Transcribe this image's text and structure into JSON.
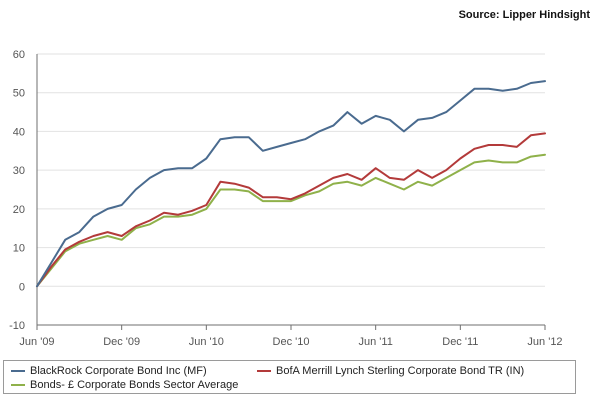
{
  "source_label": "Source: Lipper Hindsight",
  "colors": {
    "blackrock": "#4a6b8f",
    "bofa": "#b33a3a",
    "sector": "#8fb14a",
    "grid": "#e2e2e2",
    "axis": "#6f6f6f"
  },
  "chart_data": {
    "type": "line",
    "title": "",
    "xlabel": "",
    "ylabel": "",
    "ylim": [
      -10,
      60
    ],
    "yticks": [
      "-10",
      "0",
      "10",
      "20",
      "30",
      "40",
      "50",
      "60"
    ],
    "xticks": [
      "Jun '09",
      "Dec '09",
      "Jun '10",
      "Dec '10",
      "Jun '11",
      "Dec '11",
      "Jun '12"
    ],
    "x_range_months": [
      0,
      36
    ],
    "grid": "horizontal",
    "legend_position": "bottom",
    "series": [
      {
        "name": "BlackRock Corporate Bond Inc (MF)",
        "color_key": "blackrock",
        "x": [
          0,
          1,
          2,
          3,
          4,
          5,
          6,
          7,
          8,
          9,
          10,
          11,
          12,
          13,
          14,
          15,
          16,
          17,
          18,
          19,
          20,
          21,
          22,
          23,
          24,
          25,
          26,
          27,
          28,
          29,
          30,
          31,
          32,
          33,
          34,
          35,
          36
        ],
        "values": [
          0,
          6,
          12,
          14,
          18,
          20,
          21,
          25,
          28,
          30,
          30.5,
          30.5,
          33,
          38,
          38.5,
          38.5,
          35,
          36,
          37,
          38,
          40,
          41.5,
          45,
          42,
          44,
          43,
          40,
          43,
          43.5,
          45,
          48,
          51,
          51,
          50.5,
          51,
          52.5,
          53
        ]
      },
      {
        "name": "BofA Merrill Lynch Sterling Corporate Bond TR (IN)",
        "color_key": "bofa",
        "x": [
          0,
          1,
          2,
          3,
          4,
          5,
          6,
          7,
          8,
          9,
          10,
          11,
          12,
          13,
          14,
          15,
          16,
          17,
          18,
          19,
          20,
          21,
          22,
          23,
          24,
          25,
          26,
          27,
          28,
          29,
          30,
          31,
          32,
          33,
          34,
          35,
          36
        ],
        "values": [
          0,
          5,
          9.5,
          11.5,
          13,
          14,
          13,
          15.5,
          17,
          19,
          18.5,
          19.5,
          21,
          27,
          26.5,
          25.5,
          23,
          23,
          22.5,
          24,
          26,
          28,
          29,
          27.5,
          30.5,
          28,
          27.5,
          30,
          28,
          30,
          33,
          35.5,
          36.5,
          36.5,
          36,
          39,
          39.5
        ]
      },
      {
        "name": "Bonds- £ Corporate Bonds Sector Average",
        "color_key": "sector",
        "x": [
          0,
          1,
          2,
          3,
          4,
          5,
          6,
          7,
          8,
          9,
          10,
          11,
          12,
          13,
          14,
          15,
          16,
          17,
          18,
          19,
          20,
          21,
          22,
          23,
          24,
          25,
          26,
          27,
          28,
          29,
          30,
          31,
          32,
          33,
          34,
          35,
          36
        ],
        "values": [
          0,
          4.5,
          9,
          11,
          12,
          13,
          12,
          15,
          16,
          18,
          18,
          18.5,
          20,
          25,
          25,
          24.5,
          22,
          22,
          22,
          23.5,
          24.5,
          26.5,
          27,
          26,
          28,
          26.5,
          25,
          27,
          26,
          28,
          30,
          32,
          32.5,
          32,
          32,
          33.5,
          34
        ]
      }
    ]
  }
}
